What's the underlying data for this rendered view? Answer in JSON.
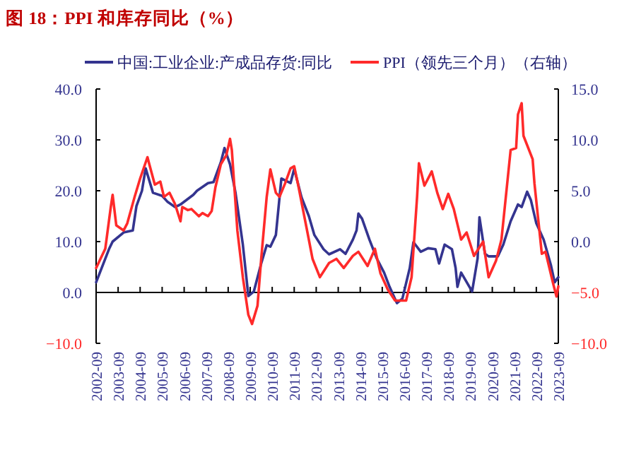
{
  "chart_data": {
    "type": "line",
    "title": "图 18：PPI 和库存同比（%）",
    "legend": "top",
    "line_style": "solid",
    "xlim": [
      "2002-09",
      "2023-09"
    ],
    "xticks": [
      "2002-09",
      "2003-09",
      "2004-09",
      "2005-09",
      "2006-09",
      "2007-09",
      "2008-09",
      "2009-09",
      "2010-09",
      "2011-09",
      "2012-09",
      "2013-09",
      "2014-09",
      "2015-09",
      "2016-09",
      "2017-09",
      "2018-09",
      "2019-09",
      "2020-09",
      "2021-09",
      "2022-09",
      "2023-09"
    ],
    "ylim": [
      -10,
      40
    ],
    "yticks": [
      {
        "value": -10,
        "label": "−10.0"
      },
      {
        "value": 0,
        "label": "0.0"
      },
      {
        "value": 10,
        "label": "10.0"
      },
      {
        "value": 20,
        "label": "20.0"
      },
      {
        "value": 30,
        "label": "30.0"
      },
      {
        "value": 40,
        "label": "40.0"
      }
    ],
    "y2lim": [
      -10,
      15
    ],
    "y2ticks": [
      {
        "value": -10,
        "label": "−10.0"
      },
      {
        "value": -5,
        "label": "−5.0"
      },
      {
        "value": 0,
        "label": "0.0"
      },
      {
        "value": 5,
        "label": "5.0"
      },
      {
        "value": 10,
        "label": "10.0"
      },
      {
        "value": 15,
        "label": "15.0"
      }
    ],
    "series": [
      {
        "name": "中国:工业企业:产成品存货:同比",
        "color": "#34348f",
        "x": [
          "2002-09",
          "2003-04",
          "2003-06",
          "2003-12",
          "2004-05",
          "2004-07",
          "2004-10",
          "2004-12",
          "2005-04",
          "2005-09",
          "2005-12",
          "2006-04",
          "2006-07",
          "2007-02",
          "2007-04",
          "2007-10",
          "2008-01",
          "2008-05",
          "2008-07",
          "2008-10",
          "2009-01",
          "2009-05",
          "2009-08",
          "2009-11",
          "2010-03",
          "2010-06",
          "2010-08",
          "2010-11",
          "2011-02",
          "2011-07",
          "2011-09",
          "2012-01",
          "2012-05",
          "2012-08",
          "2013-01",
          "2013-04",
          "2013-10",
          "2014-01",
          "2014-05",
          "2014-07",
          "2014-08",
          "2014-10",
          "2015-02",
          "2015-06",
          "2015-10",
          "2016-01",
          "2016-05",
          "2016-08",
          "2016-12",
          "2017-02",
          "2017-06",
          "2017-10",
          "2018-02",
          "2018-04",
          "2018-07",
          "2018-11",
          "2019-01",
          "2019-02",
          "2019-04",
          "2019-10",
          "2020-01",
          "2020-02",
          "2020-05",
          "2020-07",
          "2020-12",
          "2021-03",
          "2021-07",
          "2021-11",
          "2022-01",
          "2022-04",
          "2022-06",
          "2022-09",
          "2023-01",
          "2023-05",
          "2023-07",
          "2023-09"
        ],
        "values": [
          2.0,
          8.5,
          10,
          11.8,
          12.2,
          17,
          20,
          24.4,
          19.6,
          19,
          17.8,
          16.8,
          17.3,
          19.2,
          20,
          21.5,
          21.7,
          25.6,
          28.4,
          25.2,
          19.6,
          9.4,
          -0.7,
          0.2,
          5.7,
          9.3,
          9,
          11.3,
          22.4,
          21.5,
          24.3,
          18.7,
          15,
          11.3,
          8.5,
          7.5,
          8.5,
          7.6,
          10.4,
          12.2,
          15.5,
          14.5,
          10.4,
          6.7,
          3.9,
          1.1,
          -2.1,
          -1.2,
          4.8,
          9.9,
          8,
          8.7,
          8.5,
          5.7,
          9.4,
          8.5,
          4.8,
          1.1,
          3.9,
          0.2,
          6.7,
          14.8,
          7.6,
          7.1,
          7.1,
          9.4,
          14,
          17.3,
          16.8,
          19.8,
          18.2,
          13.6,
          10.4,
          5.3,
          2,
          3
        ]
      },
      {
        "name": "PPI（领先三个月）（右轴）",
        "color": "#ff2a2a",
        "axis": "y2",
        "x": [
          "2002-09",
          "2003-02",
          "2003-05",
          "2003-06",
          "2003-08",
          "2003-12",
          "2004-02",
          "2004-06",
          "2004-09",
          "2005-01",
          "2005-02",
          "2005-05",
          "2005-08",
          "2005-10",
          "2006-01",
          "2006-04",
          "2006-07",
          "2006-08",
          "2006-11",
          "2007-01",
          "2007-05",
          "2007-07",
          "2007-10",
          "2007-12",
          "2008-02",
          "2008-05",
          "2008-08",
          "2008-10",
          "2008-11",
          "2009-02",
          "2009-05",
          "2009-08",
          "2009-10",
          "2010-01",
          "2010-03",
          "2010-06",
          "2010-08",
          "2010-11",
          "2011-01",
          "2011-04",
          "2011-07",
          "2011-09",
          "2011-11",
          "2012-04",
          "2012-07",
          "2012-11",
          "2013-04",
          "2013-08",
          "2013-12",
          "2014-05",
          "2014-08",
          "2015-01",
          "2015-05",
          "2015-08",
          "2015-12",
          "2016-04",
          "2016-10",
          "2017-01",
          "2017-04",
          "2017-05",
          "2017-08",
          "2017-12",
          "2018-03",
          "2018-06",
          "2018-09",
          "2018-12",
          "2019-04",
          "2019-07",
          "2019-11",
          "2020-04",
          "2020-07",
          "2020-11",
          "2021-02",
          "2021-07",
          "2021-10",
          "2021-11",
          "2022-01",
          "2022-02",
          "2022-07",
          "2022-08",
          "2022-12",
          "2023-02",
          "2023-06",
          "2023-08",
          "2023-09"
        ],
        "values": [
          -2.6,
          -0.7,
          3.4,
          4.6,
          1.6,
          1.1,
          1.8,
          4.4,
          6.2,
          8.3,
          7.6,
          5.6,
          5.9,
          4.4,
          4.8,
          3.7,
          2.0,
          3.4,
          3.1,
          3.2,
          2.5,
          2.8,
          2.5,
          3.0,
          5.3,
          7.6,
          8.5,
          10.1,
          9.0,
          1.1,
          -3.5,
          -7.2,
          -8.1,
          -6.3,
          -1.7,
          4.4,
          7.1,
          4.8,
          4.4,
          5.7,
          7.2,
          7.4,
          5.7,
          1.1,
          -1.7,
          -3.5,
          -2.1,
          -1.7,
          -2.6,
          -1.4,
          -1.0,
          -2.4,
          -0.7,
          -3.1,
          -4.7,
          -5.8,
          -5.8,
          -3.5,
          4.4,
          7.7,
          5.5,
          6.9,
          4.8,
          3.2,
          4.7,
          3.2,
          0.2,
          0.9,
          -1.4,
          0,
          -3.5,
          -1.9,
          0.2,
          9.0,
          9.2,
          12.5,
          13.6,
          10.4,
          8.1,
          5.7,
          -1.2,
          -1.0,
          -4.0,
          -5.4,
          -4.4
        ]
      }
    ]
  }
}
